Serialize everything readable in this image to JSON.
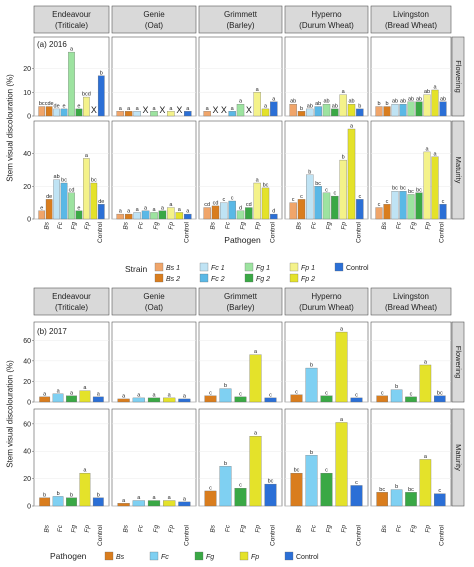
{
  "chart_data": [
    {
      "type": "bar",
      "panel_label": "(a) 2016",
      "ylabel": "Stem visual discolouration (%)",
      "xlabel": "Pathogen",
      "ylim": [
        0,
        30
      ],
      "yticks": [
        0,
        10,
        20
      ],
      "columns": [
        {
          "line1": "Endeavour",
          "line2": "(Triticale)"
        },
        {
          "line1": "Genie",
          "line2": "(Oat)"
        },
        {
          "line1": "Grimmett",
          "line2": "(Barley)"
        },
        {
          "line1": "Hyperno",
          "line2": "(Durum Wheat)"
        },
        {
          "line1": "Livingston",
          "line2": "(Bread Wheat)"
        }
      ],
      "rows": [
        "Flowering",
        "Maturity"
      ],
      "categories": [
        "Bs",
        "Fc",
        "Fg",
        "Fp",
        "Control"
      ],
      "bar_order": [
        "Bs 1",
        "Bs 2",
        "Fc 1",
        "Fc 2",
        "Fg 1",
        "Fg 2",
        "Fp 1",
        "Fp 2",
        "Control"
      ],
      "values": [
        [
          [
            [
              4,
              5,
              "bc"
            ],
            [
              4,
              "cde"
            ],
            [
              3,
              "de"
            ],
            [
              3,
              "e"
            ],
            [
              27,
              "a"
            ],
            [
              3,
              "e"
            ],
            [
              8,
              "bcd"
            ],
            null,
            [
              17,
              "b"
            ]
          ],
          [
            [
              2,
              "a"
            ],
            [
              2,
              "a"
            ],
            [
              2,
              "a"
            ],
            null,
            [
              2,
              "a"
            ],
            null,
            [
              2,
              "a"
            ],
            null,
            [
              2,
              "a"
            ]
          ],
          [
            [
              2,
              "a"
            ],
            null,
            null,
            [
              2,
              "a"
            ],
            [
              5,
              "a"
            ],
            null,
            [
              10,
              "a"
            ],
            [
              3,
              "a"
            ],
            [
              6,
              "a"
            ]
          ],
          [
            [
              5,
              "ab"
            ],
            [
              2,
              "b"
            ],
            [
              3,
              "ab"
            ],
            [
              4,
              "ab"
            ],
            [
              5,
              "ab"
            ],
            [
              3,
              "ab"
            ],
            [
              9,
              "a"
            ],
            [
              5,
              "ab"
            ],
            [
              3,
              "b"
            ]
          ],
          [
            [
              4,
              "b"
            ],
            [
              4,
              "b"
            ],
            [
              5,
              "ab"
            ],
            [
              5,
              "ab"
            ],
            [
              6,
              "ab"
            ],
            [
              6,
              "ab"
            ],
            [
              9,
              "ab"
            ],
            [
              11,
              "a"
            ],
            [
              6,
              "ab"
            ]
          ]
        ],
        [
          [
            [
              5,
              "e"
            ],
            [
              12,
              "de"
            ],
            [
              24,
              "ab"
            ],
            [
              22,
              "bc"
            ],
            [
              16,
              "cd"
            ],
            [
              5,
              "e"
            ],
            [
              37,
              "a"
            ],
            [
              22,
              "bc"
            ],
            [
              9,
              "de"
            ]
          ],
          [
            [
              3,
              "a"
            ],
            [
              3,
              "a"
            ],
            [
              4,
              "a"
            ],
            [
              5,
              "a"
            ],
            [
              4,
              "a"
            ],
            [
              5,
              "a"
            ],
            [
              7,
              "a"
            ],
            [
              4,
              "a"
            ],
            [
              3,
              "a"
            ]
          ],
          [
            [
              7,
              "cd"
            ],
            [
              8,
              "cd"
            ],
            [
              10,
              "c"
            ],
            [
              11,
              "c"
            ],
            [
              5,
              "d"
            ],
            [
              7,
              "cd"
            ],
            [
              22,
              "a"
            ],
            [
              19,
              "bc"
            ],
            [
              3,
              "d"
            ]
          ],
          [
            [
              10,
              "c"
            ],
            [
              12,
              "c"
            ],
            [
              27,
              "b"
            ],
            [
              20,
              "bc"
            ],
            [
              16,
              "c"
            ],
            [
              14,
              "c"
            ],
            [
              36,
              "b"
            ],
            [
              55,
              "a"
            ],
            [
              12,
              "c"
            ]
          ],
          [
            [
              7,
              "c"
            ],
            [
              9,
              "c"
            ],
            [
              17,
              "bc"
            ],
            [
              17,
              "bc"
            ],
            [
              15,
              "bc"
            ],
            [
              16,
              "bc"
            ],
            [
              41,
              "a"
            ],
            [
              38,
              "a"
            ],
            [
              9,
              "c"
            ]
          ]
        ]
      ],
      "x_marks_text": "X",
      "legend_title": "Strain",
      "legend": [
        {
          "label": "Bs 1",
          "color": "#f0a56a"
        },
        {
          "label": "Bs 2",
          "color": "#d97d1e"
        },
        {
          "label": "Fc 1",
          "color": "#bfe3f4"
        },
        {
          "label": "Fc 2",
          "color": "#5ab8e6"
        },
        {
          "label": "Fg 1",
          "color": "#9de3a0"
        },
        {
          "label": "Fg 2",
          "color": "#3aa845"
        },
        {
          "label": "Fp 1",
          "color": "#f4f28a"
        },
        {
          "label": "Fp 2",
          "color": "#e4e22a"
        },
        {
          "label": "Control",
          "color": "#2b6fd6"
        }
      ]
    },
    {
      "type": "bar",
      "panel_label": "(b) 2017",
      "ylabel": "Stem visual discolouration (%)",
      "xlabel": "",
      "ylim": [
        0,
        70
      ],
      "yticks": [
        0,
        20,
        40,
        60
      ],
      "columns": [
        {
          "line1": "Endeavour",
          "line2": "(Triticale)"
        },
        {
          "line1": "Genie",
          "line2": "(Oat)"
        },
        {
          "line1": "Grimmett",
          "line2": "(Barley)"
        },
        {
          "line1": "Hyperno",
          "line2": "(Durum Wheat)"
        },
        {
          "line1": "Livingston",
          "line2": "(Bread Wheat)"
        }
      ],
      "rows": [
        "Flowering",
        "Maturity"
      ],
      "categories": [
        "Bs",
        "Fc",
        "Fg",
        "Fp",
        "Control"
      ],
      "values": [
        [
          [
            [
              5,
              "a"
            ],
            [
              8,
              "a"
            ],
            [
              6,
              "a"
            ],
            [
              11,
              "a"
            ],
            [
              5,
              "a"
            ]
          ],
          [
            [
              3,
              "a"
            ],
            [
              4,
              "a"
            ],
            [
              4,
              "a"
            ],
            [
              4,
              "a"
            ],
            [
              3,
              "a"
            ]
          ],
          [
            [
              6,
              "c"
            ],
            [
              13,
              "b"
            ],
            [
              5,
              "c"
            ],
            [
              46,
              "a"
            ],
            [
              4,
              "c"
            ]
          ],
          [
            [
              7,
              "c"
            ],
            [
              33,
              "b"
            ],
            [
              6,
              "c"
            ],
            [
              68,
              "a"
            ],
            [
              4,
              "c"
            ]
          ],
          [
            [
              6,
              "c"
            ],
            [
              12,
              "b"
            ],
            [
              5,
              "c"
            ],
            [
              36,
              "a"
            ],
            [
              6,
              "bc"
            ]
          ]
        ],
        [
          [
            [
              6,
              "b"
            ],
            [
              7,
              "b"
            ],
            [
              6,
              "b"
            ],
            [
              24,
              "a"
            ],
            [
              6,
              "b"
            ]
          ],
          [
            [
              2,
              "a"
            ],
            [
              4,
              "a"
            ],
            [
              4,
              "a"
            ],
            [
              4,
              "a"
            ],
            [
              3,
              "a"
            ]
          ],
          [
            [
              11,
              "c"
            ],
            [
              29,
              "b"
            ],
            [
              13,
              "c"
            ],
            [
              51,
              "a"
            ],
            [
              16,
              "bc"
            ]
          ],
          [
            [
              24,
              "bc"
            ],
            [
              37,
              "b"
            ],
            [
              24,
              "c"
            ],
            [
              61,
              "a"
            ],
            [
              15,
              "c"
            ]
          ],
          [
            [
              10,
              "bc"
            ],
            [
              12,
              "b"
            ],
            [
              10,
              "bc"
            ],
            [
              34,
              "a"
            ],
            [
              9,
              "c"
            ]
          ]
        ]
      ],
      "legend_title": "Pathogen",
      "legend": [
        {
          "label": "Bs",
          "color": "#d97d1e"
        },
        {
          "label": "Fc",
          "color": "#7fd0f2"
        },
        {
          "label": "Fg",
          "color": "#3aa845"
        },
        {
          "label": "Fp",
          "color": "#e4e22a"
        },
        {
          "label": "Control",
          "color": "#2b6fd6"
        }
      ]
    }
  ]
}
